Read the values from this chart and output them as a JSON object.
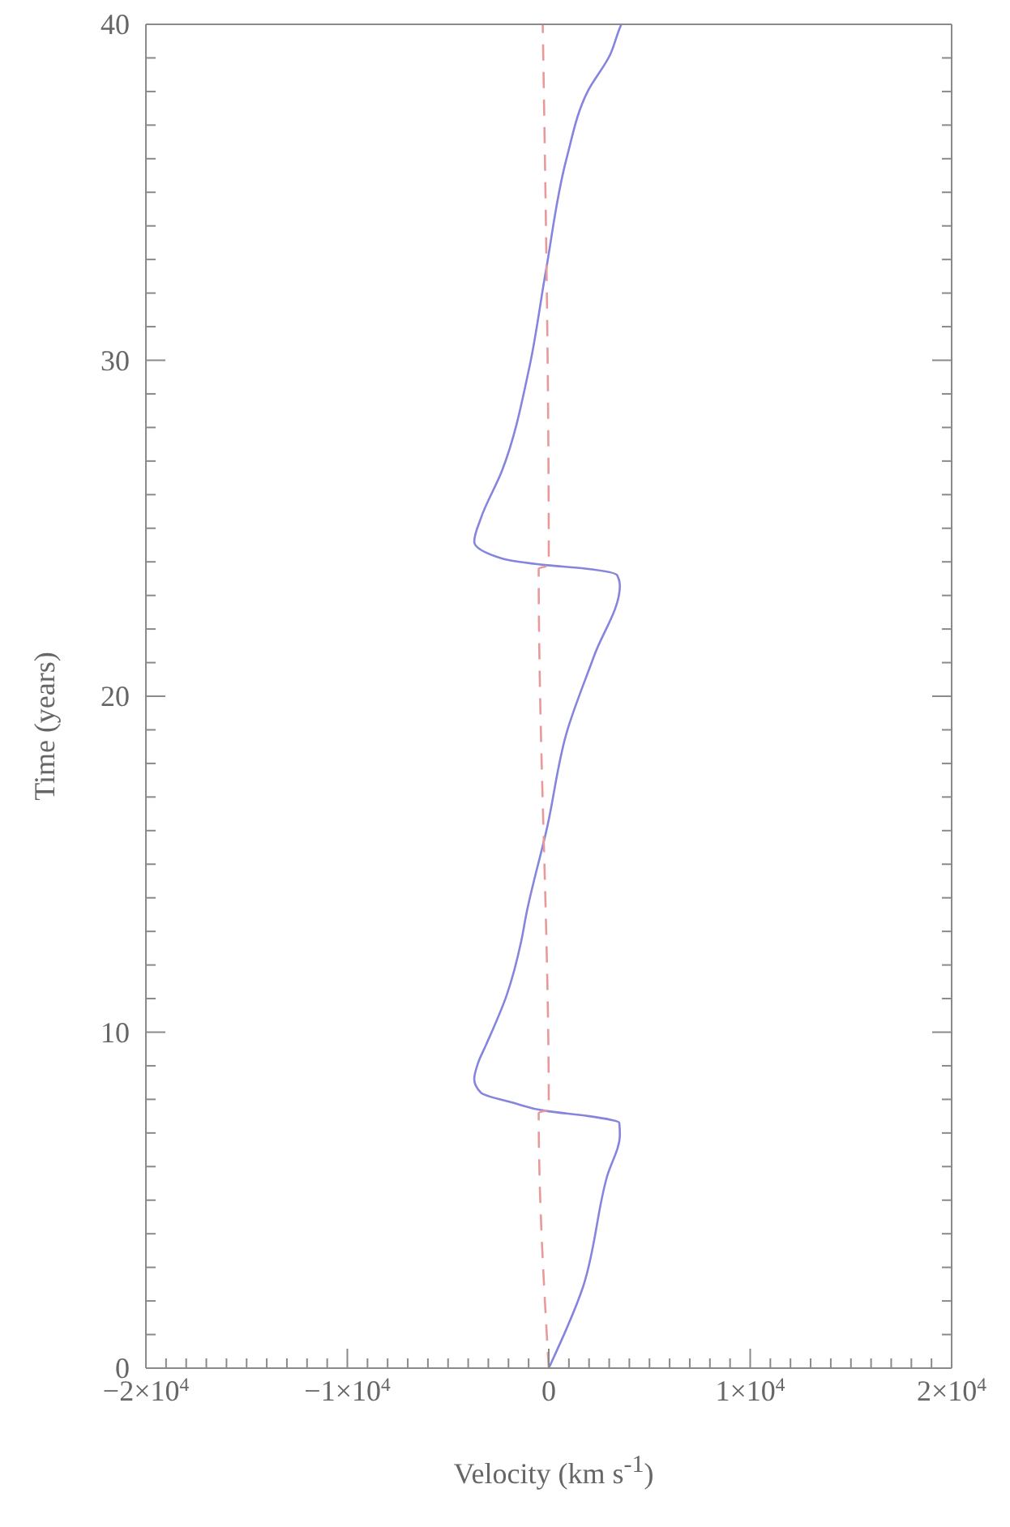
{
  "chart_data": {
    "type": "line",
    "xlabel": "Velocity (km s$^{-1}$)",
    "ylabel": "Time (years)",
    "xlim": [
      -20000,
      20000
    ],
    "ylim": [
      0,
      40
    ],
    "xticks": [
      {
        "value": -20000,
        "label": "−2×10$^{4}$"
      },
      {
        "value": -19000,
        "label": null
      },
      {
        "value": -18000,
        "label": null
      },
      {
        "value": -17000,
        "label": null
      },
      {
        "value": -16000,
        "label": null
      },
      {
        "value": -15000,
        "label": null
      },
      {
        "value": -14000,
        "label": null
      },
      {
        "value": -13000,
        "label": null
      },
      {
        "value": -12000,
        "label": null
      },
      {
        "value": -11000,
        "label": null
      },
      {
        "value": -10000,
        "label": "−1×10$^{4}$"
      },
      {
        "value": -9000,
        "label": null
      },
      {
        "value": -8000,
        "label": null
      },
      {
        "value": -7000,
        "label": null
      },
      {
        "value": -6000,
        "label": null
      },
      {
        "value": -5000,
        "label": null
      },
      {
        "value": -4000,
        "label": null
      },
      {
        "value": -3000,
        "label": null
      },
      {
        "value": -2000,
        "label": null
      },
      {
        "value": -1000,
        "label": null
      },
      {
        "value": 0,
        "label": "0"
      },
      {
        "value": 1000,
        "label": null
      },
      {
        "value": 2000,
        "label": null
      },
      {
        "value": 3000,
        "label": null
      },
      {
        "value": 4000,
        "label": null
      },
      {
        "value": 5000,
        "label": null
      },
      {
        "value": 6000,
        "label": null
      },
      {
        "value": 7000,
        "label": null
      },
      {
        "value": 8000,
        "label": null
      },
      {
        "value": 9000,
        "label": null
      },
      {
        "value": 10000,
        "label": "1×10$^{4}$"
      },
      {
        "value": 11000,
        "label": null
      },
      {
        "value": 12000,
        "label": null
      },
      {
        "value": 13000,
        "label": null
      },
      {
        "value": 14000,
        "label": null
      },
      {
        "value": 15000,
        "label": null
      },
      {
        "value": 16000,
        "label": null
      },
      {
        "value": 17000,
        "label": null
      },
      {
        "value": 18000,
        "label": null
      },
      {
        "value": 19000,
        "label": null
      },
      {
        "value": 20000,
        "label": "2×10$^{4}$"
      }
    ],
    "yticks": [
      0,
      {
        "value": 1,
        "label": null
      },
      {
        "value": 2,
        "label": null
      },
      {
        "value": 3,
        "label": null
      },
      {
        "value": 4,
        "label": null
      },
      {
        "value": 5,
        "label": null
      },
      {
        "value": 6,
        "label": null
      },
      {
        "value": 7,
        "label": null
      },
      {
        "value": 8,
        "label": null
      },
      {
        "value": 9,
        "label": null
      },
      10,
      {
        "value": 11,
        "label": null
      },
      {
        "value": 12,
        "label": null
      },
      {
        "value": 13,
        "label": null
      },
      {
        "value": 14,
        "label": null
      },
      {
        "value": 15,
        "label": null
      },
      {
        "value": 16,
        "label": null
      },
      {
        "value": 17,
        "label": null
      },
      {
        "value": 18,
        "label": null
      },
      {
        "value": 19,
        "label": null
      },
      20,
      {
        "value": 21,
        "label": null
      },
      {
        "value": 22,
        "label": null
      },
      {
        "value": 23,
        "label": null
      },
      {
        "value": 24,
        "label": null
      },
      {
        "value": 25,
        "label": null
      },
      {
        "value": 26,
        "label": null
      },
      {
        "value": 27,
        "label": null
      },
      {
        "value": 28,
        "label": null
      },
      {
        "value": 29,
        "label": null
      },
      30,
      {
        "value": 31,
        "label": null
      },
      {
        "value": 32,
        "label": null
      },
      {
        "value": 33,
        "label": null
      },
      {
        "value": 34,
        "label": null
      },
      {
        "value": 35,
        "label": null
      },
      {
        "value": 36,
        "label": null
      },
      {
        "value": 37,
        "label": null
      },
      {
        "value": 38,
        "label": null
      },
      {
        "value": 39,
        "label": null
      },
      40
    ],
    "marker": "none",
    "series": [
      {
        "color": "#8585dd",
        "line_style": "solid",
        "x": [
          0,
          1690,
          2890,
          3530,
          3500,
          2000,
          -80,
          -1770,
          -3370,
          -3700,
          -3500,
          -3130,
          -2090,
          -1370,
          -1120,
          -80,
          880,
          2250,
          3530,
          3400,
          1800,
          -80,
          -2330,
          -3700,
          -3370,
          -2330,
          -960,
          -160,
          880,
          1930,
          3050,
          3530,
          3600
        ],
        "values": [
          0,
          2.4,
          5.7,
          6.95,
          7.3,
          7.5,
          7.65,
          7.9,
          8.2,
          8.6,
          9.1,
          9.6,
          11.1,
          12.7,
          13.5,
          16.1,
          18.9,
          21.2,
          23.3,
          23.6,
          23.8,
          23.9,
          24.1,
          24.6,
          25.3,
          26.7,
          29.8,
          32.6,
          36,
          38,
          39.1,
          39.9,
          40
        ]
      },
      {
        "color": "#e89a9a",
        "line_style": "dashed",
        "x": [
          0,
          -500,
          0,
          -500,
          0,
          -300
        ],
        "values": [
          0,
          7.6,
          7.7,
          23.8,
          23.9,
          40
        ]
      }
    ]
  }
}
